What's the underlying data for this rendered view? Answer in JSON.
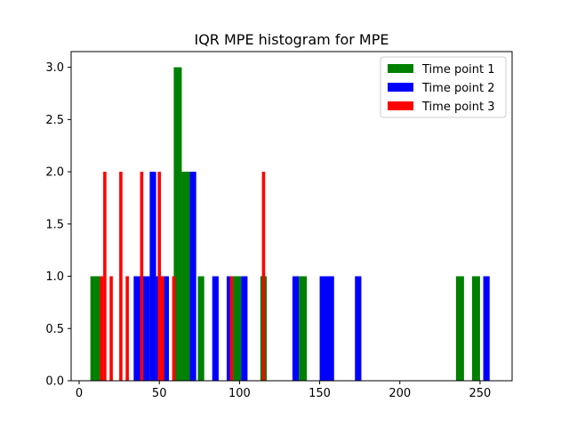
{
  "chart_data": {
    "type": "bar",
    "title": "IQR MPE histogram for MPE",
    "xlabel": "",
    "ylabel": "",
    "xlim": [
      -5,
      270
    ],
    "ylim": [
      0,
      3.15
    ],
    "xticks": [
      0,
      50,
      100,
      150,
      200,
      250
    ],
    "yticks": [
      0.0,
      0.5,
      1.0,
      1.5,
      2.0,
      2.5,
      3.0
    ],
    "ytick_labels": [
      "0.0",
      "0.5",
      "1.0",
      "1.5",
      "2.0",
      "2.5",
      "3.0"
    ],
    "grid": false,
    "legend_position": "top-right",
    "series": [
      {
        "name": "Time point 1",
        "color": "#008000",
        "bins": [
          {
            "x0": 7,
            "x1": 13,
            "value": 1
          },
          {
            "x0": 59,
            "x1": 64,
            "value": 3
          },
          {
            "x0": 64,
            "x1": 69,
            "value": 2
          },
          {
            "x0": 74,
            "x1": 78,
            "value": 1
          },
          {
            "x0": 96,
            "x1": 101,
            "value": 1
          },
          {
            "x0": 113,
            "x1": 117,
            "value": 1
          },
          {
            "x0": 137,
            "x1": 142,
            "value": 1
          },
          {
            "x0": 235,
            "x1": 240,
            "value": 1
          },
          {
            "x0": 245,
            "x1": 250,
            "value": 1
          }
        ]
      },
      {
        "name": "Time point 2",
        "color": "#0000ff",
        "bins": [
          {
            "x0": 34,
            "x1": 44,
            "value": 1
          },
          {
            "x0": 44,
            "x1": 48,
            "value": 2
          },
          {
            "x0": 48,
            "x1": 56,
            "value": 1
          },
          {
            "x0": 69,
            "x1": 73,
            "value": 2
          },
          {
            "x0": 83,
            "x1": 87,
            "value": 1
          },
          {
            "x0": 92,
            "x1": 96,
            "value": 1
          },
          {
            "x0": 101,
            "x1": 105,
            "value": 1
          },
          {
            "x0": 133,
            "x1": 137,
            "value": 1
          },
          {
            "x0": 150,
            "x1": 159,
            "value": 1
          },
          {
            "x0": 172,
            "x1": 176,
            "value": 1
          },
          {
            "x0": 252,
            "x1": 256,
            "value": 1
          }
        ]
      },
      {
        "name": "Time point 3",
        "color": "#ff0000",
        "bins": [
          {
            "x0": 13,
            "x1": 15,
            "value": 1
          },
          {
            "x0": 15,
            "x1": 17,
            "value": 2
          },
          {
            "x0": 19,
            "x1": 21,
            "value": 1
          },
          {
            "x0": 25,
            "x1": 27,
            "value": 2
          },
          {
            "x0": 29,
            "x1": 31,
            "value": 1
          },
          {
            "x0": 38,
            "x1": 40,
            "value": 2
          },
          {
            "x0": 49,
            "x1": 51,
            "value": 2
          },
          {
            "x0": 51,
            "x1": 53,
            "value": 1
          },
          {
            "x0": 58,
            "x1": 60,
            "value": 1
          },
          {
            "x0": 94,
            "x1": 96,
            "value": 1
          },
          {
            "x0": 114,
            "x1": 116,
            "value": 2
          }
        ]
      }
    ]
  }
}
